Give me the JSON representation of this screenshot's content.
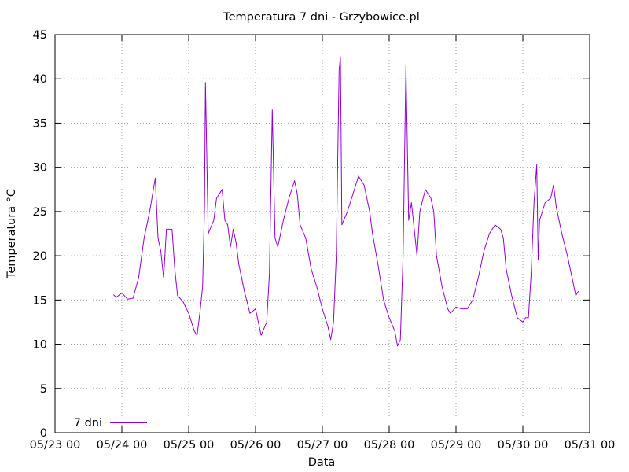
{
  "colors": {
    "series": "#9400d3",
    "axis": "#000000",
    "grid": "#a0a0a0",
    "background": "#ffffff"
  },
  "chart_data": {
    "type": "line",
    "title": "Temperatura 7 dni - Grzybowice.pl",
    "xlabel": "Data",
    "ylabel": "Temperatura °C",
    "grid": true,
    "legend_position": "bottom-left",
    "xlim": [
      "05/23 00",
      "05/31 00"
    ],
    "ylim": [
      0,
      45
    ],
    "x_ticks": [
      "05/23 00",
      "05/24 00",
      "05/25 00",
      "05/26 00",
      "05/27 00",
      "05/28 00",
      "05/29 00",
      "05/30 00",
      "05/31 00"
    ],
    "y_ticks": [
      "0",
      "5",
      "10",
      "15",
      "20",
      "25",
      "30",
      "35",
      "40",
      "45"
    ],
    "series": [
      {
        "name": "7 dni",
        "color": "#9400d3",
        "points": [
          [
            "05/23 21:00",
            15.6
          ],
          [
            "05/23 22:00",
            15.3
          ],
          [
            "05/24 00:00",
            15.8
          ],
          [
            "05/24 02:00",
            15.1
          ],
          [
            "05/24 04:00",
            15.2
          ],
          [
            "05/24 06:00",
            17.5
          ],
          [
            "05/24 08:00",
            22.0
          ],
          [
            "05/24 10:00",
            25.0
          ],
          [
            "05/24 12:00",
            28.8
          ],
          [
            "05/24 13:00",
            22.0
          ],
          [
            "05/24 14:00",
            20.5
          ],
          [
            "05/24 15:00",
            17.5
          ],
          [
            "05/24 16:00",
            23.0
          ],
          [
            "05/24 18:00",
            23.0
          ],
          [
            "05/24 19:00",
            18.5
          ],
          [
            "05/24 20:00",
            15.5
          ],
          [
            "05/24 22:00",
            14.8
          ],
          [
            "05/25 00:00",
            13.5
          ],
          [
            "05/25 02:00",
            11.5
          ],
          [
            "05/25 03:00",
            11.0
          ],
          [
            "05/25 04:00",
            13.5
          ],
          [
            "05/25 05:00",
            16.5
          ],
          [
            "05/25 05:40",
            25.5
          ],
          [
            "05/25 06:00",
            39.6
          ],
          [
            "05/25 07:00",
            22.5
          ],
          [
            "05/25 09:00",
            24.0
          ],
          [
            "05/25 10:00",
            26.5
          ],
          [
            "05/25 12:00",
            27.5
          ],
          [
            "05/25 13:00",
            24.0
          ],
          [
            "05/25 14:00",
            23.5
          ],
          [
            "05/25 15:00",
            21.0
          ],
          [
            "05/25 16:00",
            23.0
          ],
          [
            "05/25 17:00",
            21.5
          ],
          [
            "05/25 18:00",
            19.0
          ],
          [
            "05/25 20:00",
            16.0
          ],
          [
            "05/25 22:00",
            13.5
          ],
          [
            "05/26 00:00",
            14.0
          ],
          [
            "05/26 02:00",
            11.0
          ],
          [
            "05/26 04:00",
            12.5
          ],
          [
            "05/26 05:00",
            18.0
          ],
          [
            "05/26 06:00",
            36.5
          ],
          [
            "05/26 07:00",
            22.0
          ],
          [
            "05/26 08:00",
            21.0
          ],
          [
            "05/26 10:00",
            24.0
          ],
          [
            "05/26 12:00",
            26.5
          ],
          [
            "05/26 14:00",
            28.5
          ],
          [
            "05/26 15:00",
            27.0
          ],
          [
            "05/26 16:00",
            23.5
          ],
          [
            "05/26 18:00",
            22.0
          ],
          [
            "05/26 20:00",
            18.5
          ],
          [
            "05/26 22:00",
            16.5
          ],
          [
            "05/27 00:00",
            14.0
          ],
          [
            "05/27 02:00",
            12.0
          ],
          [
            "05/27 03:00",
            10.5
          ],
          [
            "05/27 04:00",
            12.5
          ],
          [
            "05/27 05:00",
            20.0
          ],
          [
            "05/27 06:00",
            41.0
          ],
          [
            "05/27 06:30",
            42.5
          ],
          [
            "05/27 07:00",
            23.5
          ],
          [
            "05/27 09:00",
            25.0
          ],
          [
            "05/27 11:00",
            27.0
          ],
          [
            "05/27 13:00",
            29.0
          ],
          [
            "05/27 15:00",
            28.0
          ],
          [
            "05/27 17:00",
            25.0
          ],
          [
            "05/27 18:00",
            22.5
          ],
          [
            "05/27 20:00",
            19.0
          ],
          [
            "05/27 22:00",
            15.0
          ],
          [
            "05/28 00:00",
            13.0
          ],
          [
            "05/28 02:00",
            11.5
          ],
          [
            "05/28 03:00",
            9.8
          ],
          [
            "05/28 04:00",
            10.5
          ],
          [
            "05/28 05:00",
            20.0
          ],
          [
            "05/28 06:00",
            41.5
          ],
          [
            "05/28 07:00",
            24.0
          ],
          [
            "05/28 08:00",
            26.0
          ],
          [
            "05/28 09:00",
            23.0
          ],
          [
            "05/28 10:00",
            20.0
          ],
          [
            "05/28 11:00",
            25.0
          ],
          [
            "05/28 13:00",
            27.5
          ],
          [
            "05/28 15:00",
            26.5
          ],
          [
            "05/28 16:00",
            25.0
          ],
          [
            "05/28 17:00",
            20.0
          ],
          [
            "05/28 19:00",
            16.5
          ],
          [
            "05/28 21:00",
            14.0
          ],
          [
            "05/28 22:00",
            13.5
          ],
          [
            "05/29 00:00",
            14.2
          ],
          [
            "05/29 02:00",
            14.0
          ],
          [
            "05/29 04:00",
            14.0
          ],
          [
            "05/29 06:00",
            15.0
          ],
          [
            "05/29 08:00",
            17.5
          ],
          [
            "05/29 10:00",
            20.5
          ],
          [
            "05/29 12:00",
            22.5
          ],
          [
            "05/29 14:00",
            23.5
          ],
          [
            "05/29 16:00",
            23.0
          ],
          [
            "05/29 17:00",
            22.0
          ],
          [
            "05/29 18:00",
            18.5
          ],
          [
            "05/29 20:00",
            15.5
          ],
          [
            "05/29 22:00",
            13.0
          ],
          [
            "05/30 00:00",
            12.5
          ],
          [
            "05/30 01:00",
            13.0
          ],
          [
            "05/30 02:00",
            13.0
          ],
          [
            "05/30 03:00",
            18.0
          ],
          [
            "05/30 04:00",
            26.0
          ],
          [
            "05/30 05:00",
            30.3
          ],
          [
            "05/30 05:30",
            19.5
          ],
          [
            "05/30 06:00",
            24.0
          ],
          [
            "05/30 08:00",
            26.0
          ],
          [
            "05/30 10:00",
            26.5
          ],
          [
            "05/30 11:00",
            28.0
          ],
          [
            "05/30 12:00",
            25.5
          ],
          [
            "05/30 14:00",
            22.5
          ],
          [
            "05/30 16:00",
            20.0
          ],
          [
            "05/30 18:00",
            17.0
          ],
          [
            "05/30 19:00",
            15.5
          ],
          [
            "05/30 20:00",
            16.0
          ]
        ]
      }
    ]
  }
}
